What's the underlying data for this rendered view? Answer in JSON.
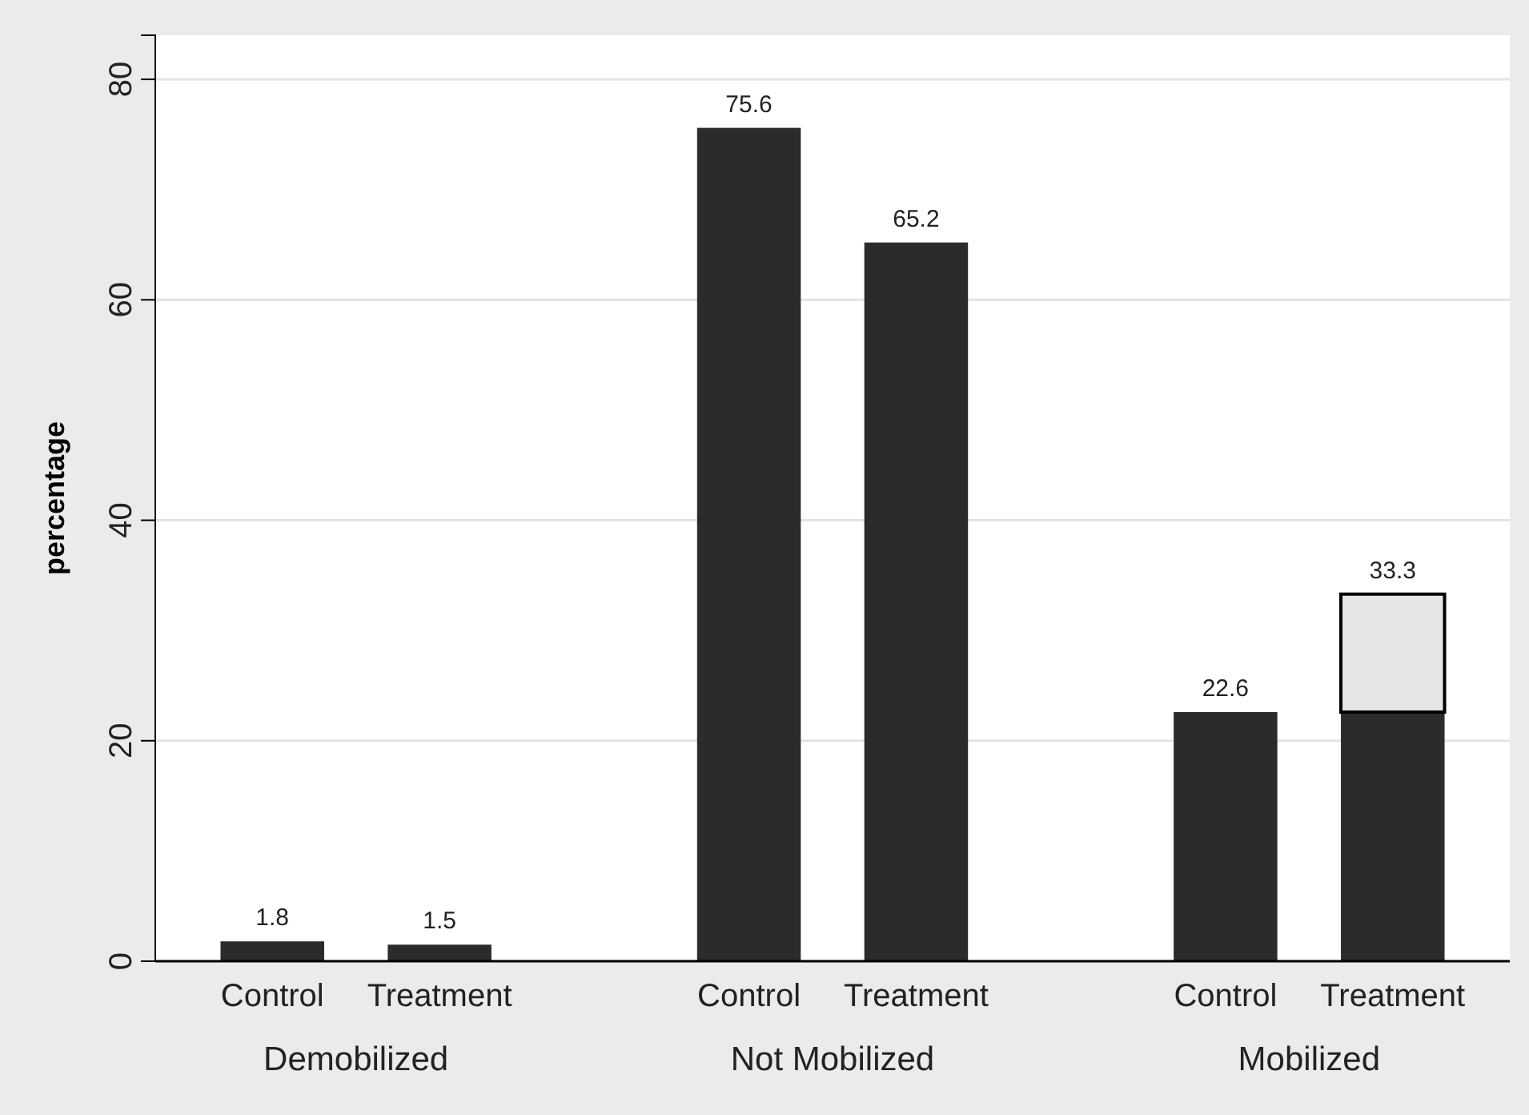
{
  "chart_data": {
    "type": "bar",
    "stacked": true,
    "ylabel": "percentage",
    "categories": [
      "Control",
      "Treatment",
      "Control",
      "Treatment",
      "Control",
      "Treatment"
    ],
    "series": [
      {
        "color": "#2b2b2b",
        "values": [
          1.8,
          1.5,
          75.6,
          65.2,
          22.6,
          22.6
        ]
      },
      {
        "color": "#e6e6e6",
        "values": [
          null,
          null,
          null,
          null,
          null,
          10.7
        ]
      }
    ],
    "totals": [
      "1.8",
      "1.5",
      "75.6",
      "65.2",
      "22.6",
      "33.3"
    ],
    "annotations": [
      "Demobilized",
      "Not Mobilized",
      "Mobilized"
    ],
    "ylim": [
      0,
      84
    ],
    "yticks": [
      0,
      20,
      40,
      60,
      80
    ],
    "grid": "y"
  }
}
